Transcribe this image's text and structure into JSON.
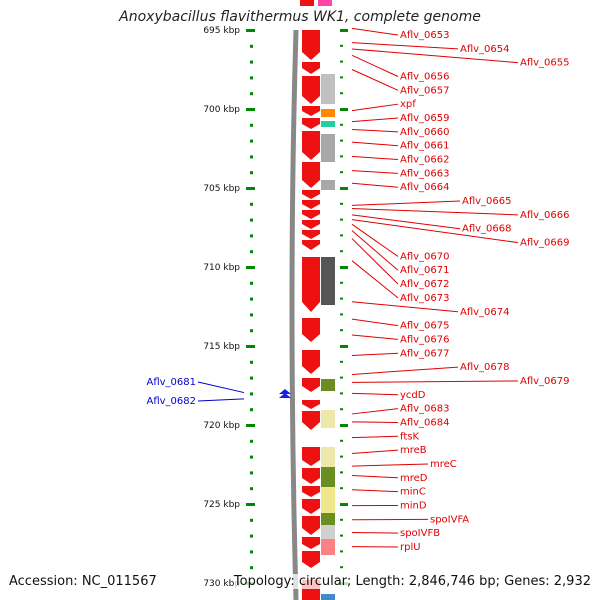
{
  "title": "Anoxybacillus flavithermus WK1, complete genome",
  "footer": {
    "accession": "Accession: NC_011567",
    "topology": "Topology: circular; Length: 2,846,746 bp; Genes: 2,932"
  },
  "colors": {
    "gene_fwd": "#ee1111",
    "label_red": "#e00000",
    "label_blue": "#0000cc",
    "tick_green": "#008800",
    "backbone": "#888888"
  },
  "ruler": [
    {
      "label": "695 kbp",
      "kbp": 695
    },
    {
      "label": "700 kbp",
      "kbp": 700
    },
    {
      "label": "705 kbp",
      "kbp": 705
    },
    {
      "label": "710 kbp",
      "kbp": 710
    },
    {
      "label": "715 kbp",
      "kbp": 715
    },
    {
      "label": "720 kbp",
      "kbp": 720
    },
    {
      "label": "725 kbp",
      "kbp": 725
    },
    {
      "label": "730 kbp",
      "kbp": 730
    }
  ],
  "genes_right": [
    {
      "label": "Aflv_0653",
      "kbp": 694.9
    },
    {
      "label": "Aflv_0654",
      "kbp": 695.8
    },
    {
      "label": "Aflv_0655",
      "kbp": 696.2
    },
    {
      "label": "Aflv_0656",
      "kbp": 696.6
    },
    {
      "label": "Aflv_0657",
      "kbp": 697.5
    },
    {
      "label": "xpf",
      "kbp": 700.1
    },
    {
      "label": "Aflv_0659",
      "kbp": 700.8
    },
    {
      "label": "Aflv_0660",
      "kbp": 701.3
    },
    {
      "label": "Aflv_0661",
      "kbp": 702.1
    },
    {
      "label": "Aflv_0662",
      "kbp": 703.0
    },
    {
      "label": "Aflv_0663",
      "kbp": 703.9
    },
    {
      "label": "Aflv_0664",
      "kbp": 704.7
    },
    {
      "label": "Aflv_0665",
      "kbp": 706.1
    },
    {
      "label": "Aflv_0666",
      "kbp": 706.3
    },
    {
      "label": "Aflv_0668",
      "kbp": 706.7
    },
    {
      "label": "Aflv_0669",
      "kbp": 707.0
    },
    {
      "label": "Aflv_0670",
      "kbp": 707.3
    },
    {
      "label": "Aflv_0671",
      "kbp": 707.7
    },
    {
      "label": "Aflv_0672",
      "kbp": 708.2
    },
    {
      "label": "Aflv_0673",
      "kbp": 709.6
    },
    {
      "label": "Aflv_0674",
      "kbp": 712.2
    },
    {
      "label": "Aflv_0675",
      "kbp": 713.3
    },
    {
      "label": "Aflv_0676",
      "kbp": 714.3
    },
    {
      "label": "Aflv_0677",
      "kbp": 715.6
    },
    {
      "label": "Aflv_0678",
      "kbp": 716.8
    },
    {
      "label": "Aflv_0679",
      "kbp": 717.3
    },
    {
      "label": "ycdD",
      "kbp": 718.0
    },
    {
      "label": "Aflv_0683",
      "kbp": 719.3
    },
    {
      "label": "Aflv_0684",
      "kbp": 719.8
    },
    {
      "label": "ftsK",
      "kbp": 720.8
    },
    {
      "label": "mreB",
      "kbp": 721.8
    },
    {
      "label": "mreC",
      "kbp": 722.6
    },
    {
      "label": "mreD",
      "kbp": 723.2
    },
    {
      "label": "minC",
      "kbp": 724.1
    },
    {
      "label": "minD",
      "kbp": 725.1
    },
    {
      "label": "spoIVFA",
      "kbp": 726.0
    },
    {
      "label": "spoIVFB",
      "kbp": 726.8
    },
    {
      "label": "rplU",
      "kbp": 727.7
    }
  ],
  "genes_left": [
    {
      "label": "Aflv_0681",
      "kbp": 718.2
    },
    {
      "label": "Aflv_0682",
      "kbp": 718.6
    }
  ]
}
